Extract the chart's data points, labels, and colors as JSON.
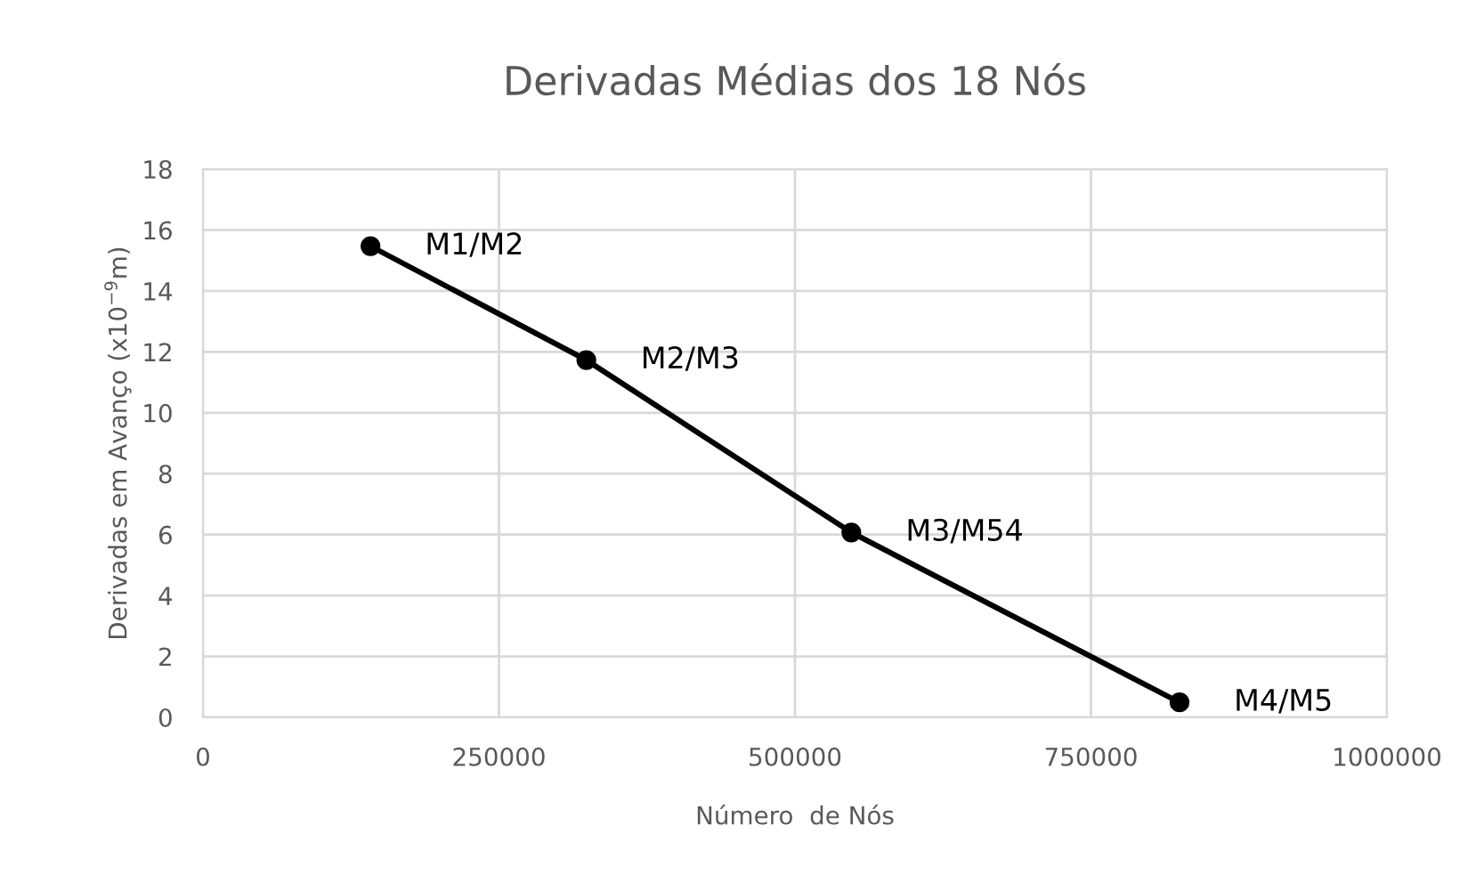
{
  "chart_data": {
    "type": "line",
    "title": "Derivadas Médias dos 18 Nós",
    "xlabel": "Número  de Nós",
    "ylabel": "Derivadas em Avanço (x10$^{−9}$m)",
    "x": [
      141500,
      323800,
      547600,
      824800
    ],
    "series": [
      {
        "color": "#000000",
        "values": [
          15.47,
          11.73,
          6.07,
          0.49
        ]
      }
    ],
    "annotations": [
      {
        "text": "M1/M2",
        "x": 141500,
        "y": 15.47
      },
      {
        "text": "M2/M3",
        "x": 323800,
        "y": 11.73
      },
      {
        "text": "M3/M54",
        "x": 547600,
        "y": 6.07
      },
      {
        "text": "M4/M5",
        "x": 824800,
        "y": 0.49
      }
    ],
    "xlim": [
      0,
      1000000
    ],
    "xticks": [
      0,
      250000,
      500000,
      750000,
      1000000
    ],
    "ylim": [
      0,
      18
    ],
    "yticks": [
      0,
      2,
      4,
      6,
      8,
      10,
      12,
      14,
      16,
      18
    ],
    "grid": true,
    "marker": "circle",
    "line_style": "solid"
  }
}
